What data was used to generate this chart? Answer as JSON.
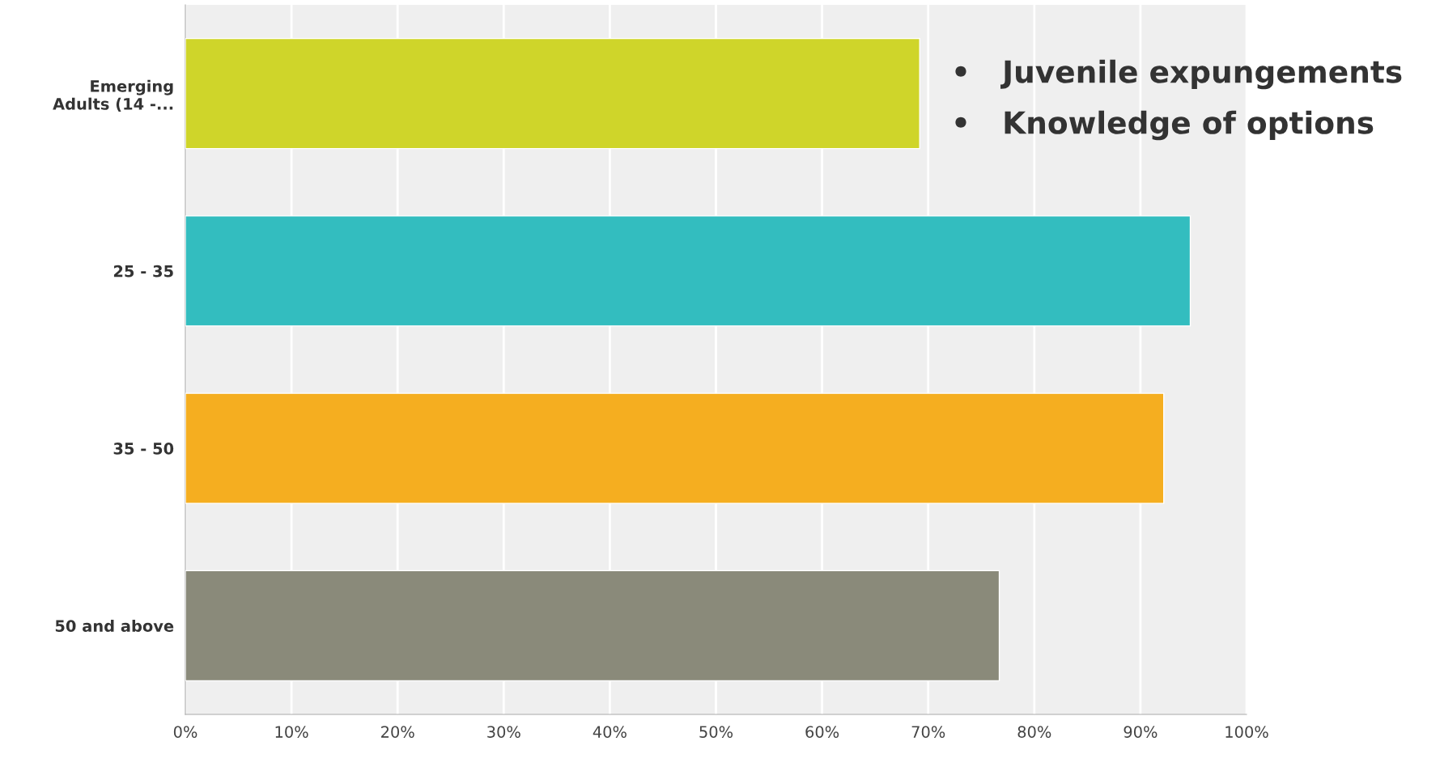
{
  "chart_data": {
    "type": "bar",
    "orientation": "horizontal",
    "categories": [
      "Emerging\nAdults (14 -...",
      "25 - 35",
      "35 - 50",
      "50 and above"
    ],
    "values": [
      69.2,
      94.7,
      92.2,
      76.7
    ],
    "colors": [
      "#cfd52a",
      "#33bdbf",
      "#f5ae20",
      "#8a8a7a"
    ],
    "xlim": [
      0,
      100
    ],
    "xticks": [
      {
        "value": 0,
        "label": "0%"
      },
      {
        "value": 10,
        "label": "10%"
      },
      {
        "value": 20,
        "label": "20%"
      },
      {
        "value": 30,
        "label": "30%"
      },
      {
        "value": 40,
        "label": "40%"
      },
      {
        "value": 50,
        "label": "50%"
      },
      {
        "value": 60,
        "label": "60%"
      },
      {
        "value": 70,
        "label": "70%"
      },
      {
        "value": 80,
        "label": "80%"
      },
      {
        "value": 90,
        "label": "90%"
      },
      {
        "value": 100,
        "label": "100%"
      }
    ],
    "grid": "x",
    "annotations": [
      "•   Juvenile expungements",
      "•   Knowledge of options"
    ]
  }
}
